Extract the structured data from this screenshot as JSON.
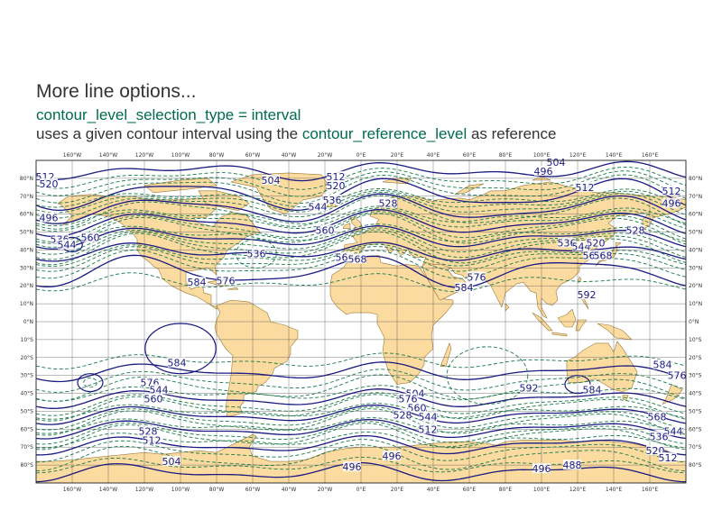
{
  "header": {
    "title": "More line options...",
    "subtitle": "contour_level_selection_type = interval",
    "description_prefix": "uses a given contour interval using the ",
    "description_highlight": "contour_reference_level",
    "description_suffix": " as reference"
  },
  "colors": {
    "land": "#fbdba0",
    "coast": "#9a7a3a",
    "grid": "#555555",
    "major_contour": "#1a1a80",
    "minor_contour": "#1a7a4a",
    "title_text": "#333333",
    "highlight_text": "#006b4f"
  },
  "map": {
    "projection": "cylindrical",
    "lon_range": [
      -180,
      180
    ],
    "lat_range": [
      -90,
      90
    ],
    "lon_ticks": [
      "160°W",
      "140°W",
      "120°W",
      "100°W",
      "80°W",
      "60°W",
      "40°W",
      "20°W",
      "0°E",
      "20°E",
      "40°E",
      "60°E",
      "80°E",
      "100°E",
      "120°E",
      "140°E",
      "160°E"
    ],
    "lat_ticks": [
      "80°N",
      "70°N",
      "60°N",
      "50°N",
      "40°N",
      "30°N",
      "20°N",
      "10°N",
      "0°N",
      "10°S",
      "20°S",
      "30°S",
      "40°S",
      "50°S",
      "60°S",
      "70°S",
      "80°S"
    ],
    "contour_labels": [
      {
        "text": "512",
        "lon": -175,
        "lat": 81
      },
      {
        "text": "520",
        "lon": -173,
        "lat": 77
      },
      {
        "text": "496",
        "lon": -173,
        "lat": 58
      },
      {
        "text": "536",
        "lon": -167,
        "lat": 46
      },
      {
        "text": "544",
        "lon": -163,
        "lat": 43
      },
      {
        "text": "560",
        "lon": -150,
        "lat": 47
      },
      {
        "text": "504",
        "lon": -50,
        "lat": 79
      },
      {
        "text": "512",
        "lon": -14,
        "lat": 81
      },
      {
        "text": "520",
        "lon": -14,
        "lat": 76
      },
      {
        "text": "536",
        "lon": -16,
        "lat": 68
      },
      {
        "text": "544",
        "lon": -24,
        "lat": 64
      },
      {
        "text": "528",
        "lon": 15,
        "lat": 66
      },
      {
        "text": "560",
        "lon": -20,
        "lat": 51
      },
      {
        "text": "536",
        "lon": -58,
        "lat": 38
      },
      {
        "text": "560",
        "lon": -9,
        "lat": 36
      },
      {
        "text": "568",
        "lon": -2,
        "lat": 35
      },
      {
        "text": "584",
        "lon": -91,
        "lat": 22
      },
      {
        "text": "576",
        "lon": -75,
        "lat": 23
      },
      {
        "text": "576",
        "lon": 64,
        "lat": 25
      },
      {
        "text": "584",
        "lon": 57,
        "lat": 19
      },
      {
        "text": "592",
        "lon": 125,
        "lat": 15
      },
      {
        "text": "504",
        "lon": 108,
        "lat": 89
      },
      {
        "text": "496",
        "lon": 101,
        "lat": 84
      },
      {
        "text": "512",
        "lon": 124,
        "lat": 75
      },
      {
        "text": "512",
        "lon": 172,
        "lat": 73
      },
      {
        "text": "496",
        "lon": 172,
        "lat": 66
      },
      {
        "text": "528",
        "lon": 152,
        "lat": 51
      },
      {
        "text": "536",
        "lon": 114,
        "lat": 44
      },
      {
        "text": "544",
        "lon": 122,
        "lat": 42
      },
      {
        "text": "520",
        "lon": 130,
        "lat": 44
      },
      {
        "text": "560",
        "lon": 128,
        "lat": 37
      },
      {
        "text": "568",
        "lon": 134,
        "lat": 37
      },
      {
        "text": "584",
        "lon": -102,
        "lat": -23
      },
      {
        "text": "576",
        "lon": -117,
        "lat": -34
      },
      {
        "text": "560",
        "lon": -115,
        "lat": -43
      },
      {
        "text": "544",
        "lon": -112,
        "lat": -38
      },
      {
        "text": "528",
        "lon": -118,
        "lat": -61
      },
      {
        "text": "512",
        "lon": -116,
        "lat": -66
      },
      {
        "text": "504",
        "lon": -105,
        "lat": -78
      },
      {
        "text": "496",
        "lon": -5,
        "lat": -81
      },
      {
        "text": "496",
        "lon": 17,
        "lat": -75
      },
      {
        "text": "504",
        "lon": 30,
        "lat": -40
      },
      {
        "text": "576",
        "lon": 26,
        "lat": -43
      },
      {
        "text": "560",
        "lon": 31,
        "lat": -48
      },
      {
        "text": "528",
        "lon": 23,
        "lat": -52
      },
      {
        "text": "544",
        "lon": 37,
        "lat": -53
      },
      {
        "text": "512",
        "lon": 37,
        "lat": -60
      },
      {
        "text": "592",
        "lon": 93,
        "lat": -37
      },
      {
        "text": "584",
        "lon": 128,
        "lat": -38
      },
      {
        "text": "584",
        "lon": 167,
        "lat": -24
      },
      {
        "text": "576",
        "lon": 175,
        "lat": -30
      },
      {
        "text": "568",
        "lon": 164,
        "lat": -53
      },
      {
        "text": "544",
        "lon": 173,
        "lat": -61
      },
      {
        "text": "536",
        "lon": 165,
        "lat": -64
      },
      {
        "text": "520",
        "lon": 163,
        "lat": -72
      },
      {
        "text": "512",
        "lon": 170,
        "lat": -76
      },
      {
        "text": "496",
        "lon": 100,
        "lat": -82
      },
      {
        "text": "488",
        "lon": 117,
        "lat": -80
      }
    ]
  }
}
